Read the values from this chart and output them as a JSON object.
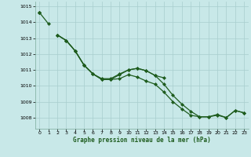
{
  "xlabel": "Graphe pression niveau de la mer (hPa)",
  "xlim": [
    -0.5,
    23.5
  ],
  "ylim": [
    1007.3,
    1015.3
  ],
  "yticks": [
    1008,
    1009,
    1010,
    1011,
    1012,
    1013,
    1014,
    1015
  ],
  "xticks": [
    0,
    1,
    2,
    3,
    4,
    5,
    6,
    7,
    8,
    9,
    10,
    11,
    12,
    13,
    14,
    15,
    16,
    17,
    18,
    19,
    20,
    21,
    22,
    23
  ],
  "bg_color": "#c8e8e8",
  "line_color": "#1e5c1e",
  "grid_color": "#a8cece",
  "series": [
    [
      1014.6,
      1013.9,
      null,
      null,
      null,
      null,
      null,
      null,
      null,
      null,
      null,
      null,
      null,
      null,
      null,
      null,
      null,
      null,
      null,
      null,
      null,
      null,
      null,
      null
    ],
    [
      1014.6,
      null,
      1013.2,
      1012.85,
      1012.2,
      1011.3,
      1010.75,
      1010.4,
      1010.4,
      1010.45,
      1010.7,
      1010.55,
      1010.3,
      1010.1,
      1009.6,
      1009.0,
      1008.55,
      1008.15,
      1008.05,
      1008.05,
      1008.2,
      1008.0,
      1008.45,
      1008.3
    ],
    [
      1014.6,
      null,
      1013.2,
      1012.85,
      1012.2,
      1011.3,
      1010.75,
      1010.4,
      1010.4,
      1010.7,
      1011.0,
      1011.1,
      1010.95,
      1010.65,
      1010.1,
      1009.4,
      1008.85,
      1008.4,
      1008.05,
      1008.05,
      1008.15,
      1008.0,
      1008.45,
      1008.3
    ],
    [
      1014.6,
      null,
      1013.2,
      1012.85,
      1012.2,
      1011.3,
      1010.75,
      1010.45,
      1010.45,
      1010.75,
      1011.0,
      1011.1,
      1010.95,
      1010.65,
      1010.5,
      null,
      null,
      null,
      null,
      null,
      null,
      null,
      null,
      null
    ]
  ],
  "series2": [
    [
      1014.6,
      1013.9
    ],
    [
      0,
      1
    ]
  ],
  "marker": "D",
  "markersize": 2.0,
  "linewidth": 0.9
}
